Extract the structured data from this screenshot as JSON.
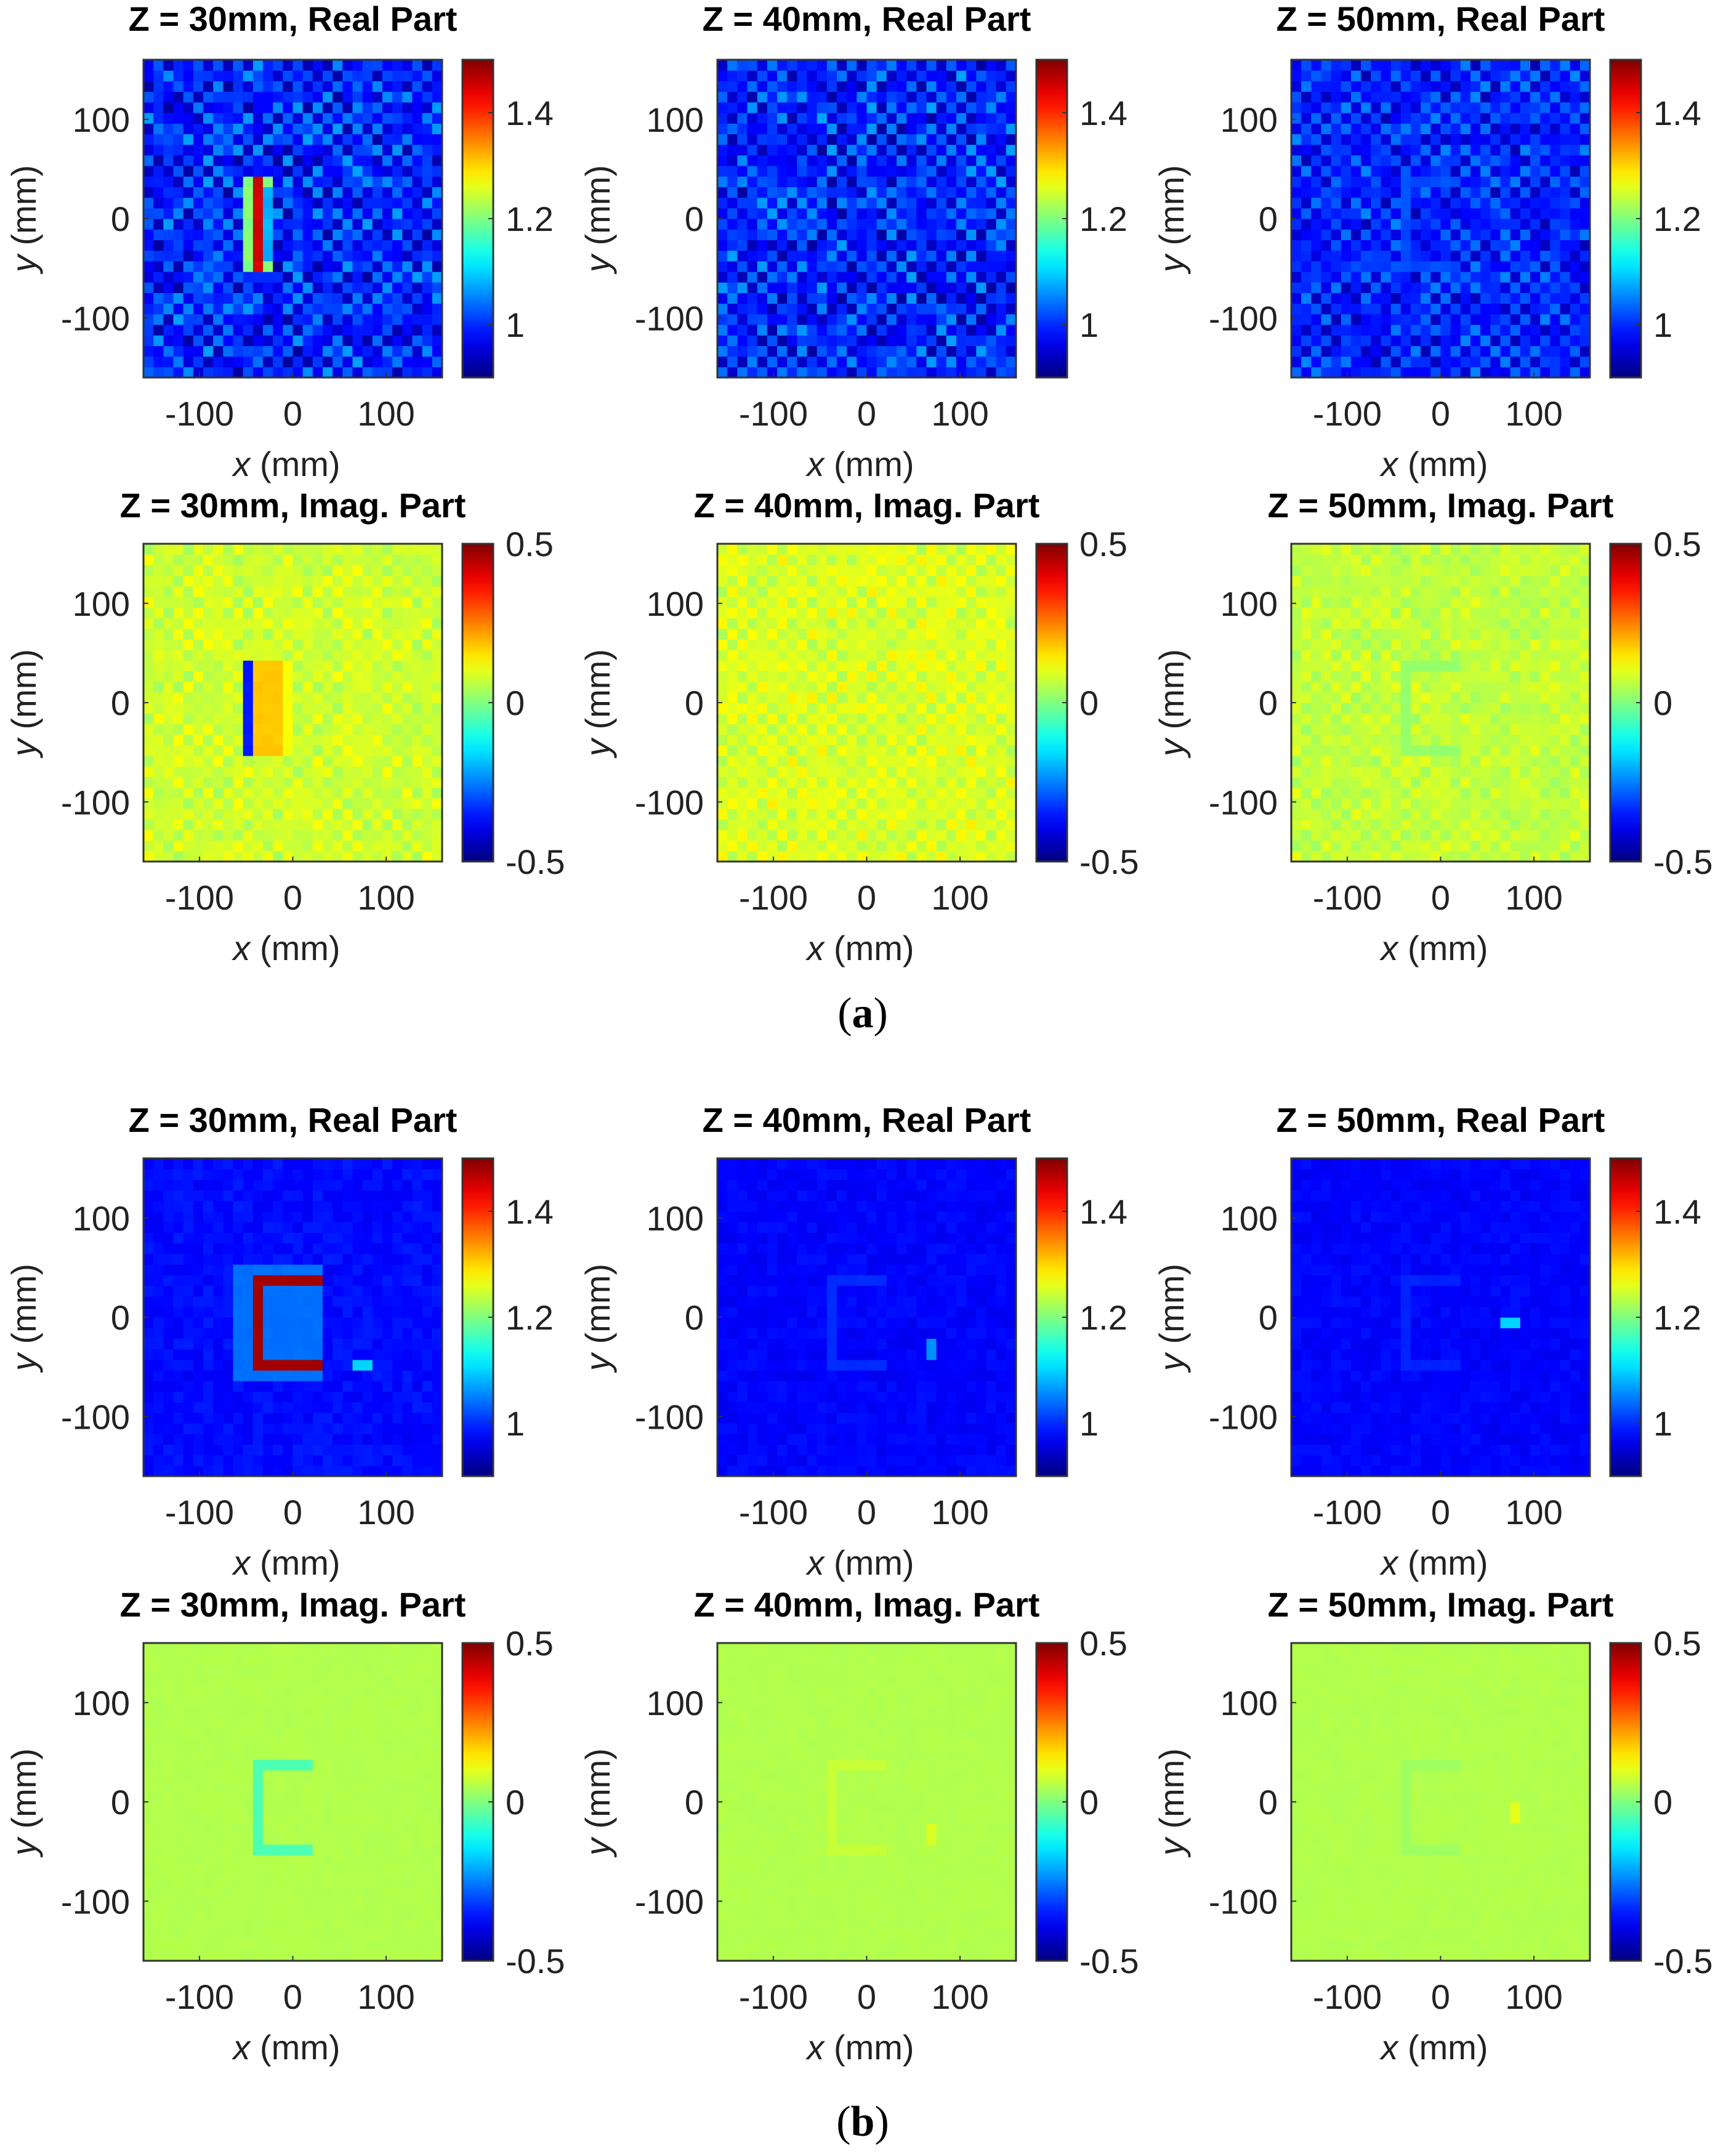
{
  "figure": {
    "panel_labels": [
      {
        "open": "(",
        "letter": "a",
        "close": ")"
      },
      {
        "open": "(",
        "letter": "b",
        "close": ")"
      }
    ]
  },
  "chart_data": [
    {
      "id": "a-r30",
      "type": "heatmap",
      "panel": "a",
      "title": "Z = 30mm, Real Part",
      "xlabel_var": "x",
      "xlabel_unit": " (mm)",
      "ylabel_var": "y",
      "ylabel_unit": " (mm)",
      "xlim": [
        -160,
        160
      ],
      "ylim": [
        -160,
        160
      ],
      "xticks": [
        -100,
        0,
        100
      ],
      "yticks": [
        -100,
        0,
        100
      ],
      "xtick_labels": [
        "-100",
        "0",
        "100"
      ],
      "ytick_labels": [
        "-100",
        "0",
        "100"
      ],
      "clim": [
        0.9,
        1.5
      ],
      "cticks": [
        1.0,
        1.2,
        1.4
      ],
      "ctick_labels": [
        "1",
        "1.2",
        "1.4"
      ],
      "grid_n": 30,
      "base": 0.98,
      "noise": 0.05,
      "checker": 0.04,
      "letter": "I",
      "letter_value": 1.45,
      "letter_value2": 1.2,
      "spot": null
    },
    {
      "id": "a-r40",
      "type": "heatmap",
      "panel": "a",
      "title": "Z = 40mm, Real Part",
      "xlabel_var": "x",
      "xlabel_unit": " (mm)",
      "ylabel_var": "y",
      "ylabel_unit": " (mm)",
      "xlim": [
        -160,
        160
      ],
      "ylim": [
        -160,
        160
      ],
      "xticks": [
        -100,
        0,
        100
      ],
      "yticks": [
        -100,
        0,
        100
      ],
      "xtick_labels": [
        "-100",
        "0",
        "100"
      ],
      "ytick_labels": [
        "-100",
        "0",
        "100"
      ],
      "clim": [
        0.9,
        1.5
      ],
      "cticks": [
        1.0,
        1.2,
        1.4
      ],
      "ctick_labels": [
        "1",
        "1.2",
        "1.4"
      ],
      "grid_n": 30,
      "base": 0.98,
      "noise": 0.05,
      "checker": 0.04,
      "letter": null,
      "letter_value": null,
      "letter_value2": null,
      "spot": null
    },
    {
      "id": "a-r50",
      "type": "heatmap",
      "panel": "a",
      "title": "Z = 50mm, Real Part",
      "xlabel_var": "x",
      "xlabel_unit": " (mm)",
      "ylabel_var": "y",
      "ylabel_unit": " (mm)",
      "xlim": [
        -160,
        160
      ],
      "ylim": [
        -160,
        160
      ],
      "xticks": [
        -100,
        0,
        100
      ],
      "yticks": [
        -100,
        0,
        100
      ],
      "xtick_labels": [
        "-100",
        "0",
        "100"
      ],
      "ytick_labels": [
        "-100",
        "0",
        "100"
      ],
      "clim": [
        0.9,
        1.5
      ],
      "cticks": [
        1.0,
        1.2,
        1.4
      ],
      "ctick_labels": [
        "1",
        "1.2",
        "1.4"
      ],
      "grid_n": 30,
      "base": 0.98,
      "noise": 0.04,
      "checker": 0.035,
      "letter": "faintE",
      "letter_value": 1.02,
      "letter_value2": 1.02,
      "spot": null
    },
    {
      "id": "a-i30",
      "type": "heatmap",
      "panel": "a",
      "title": "Z = 30mm, Imag. Part",
      "xlabel_var": "x",
      "xlabel_unit": " (mm)",
      "ylabel_var": "y",
      "ylabel_unit": " (mm)",
      "xlim": [
        -160,
        160
      ],
      "ylim": [
        -160,
        160
      ],
      "xticks": [
        -100,
        0,
        100
      ],
      "yticks": [
        -100,
        0,
        100
      ],
      "xtick_labels": [
        "-100",
        "0",
        "100"
      ],
      "ytick_labels": [
        "-100",
        "0",
        "100"
      ],
      "clim": [
        -0.5,
        0.5
      ],
      "cticks": [
        -0.5,
        0,
        0.5
      ],
      "ctick_labels": [
        "-0.5",
        "0",
        "0.5"
      ],
      "grid_n": 30,
      "base": 0.07,
      "noise": 0.03,
      "checker": 0.025,
      "letter": "Iimag",
      "letter_value": -0.35,
      "letter_value2": 0.18,
      "spot": null
    },
    {
      "id": "a-i40",
      "type": "heatmap",
      "panel": "a",
      "title": "Z = 40mm, Imag. Part",
      "xlabel_var": "x",
      "xlabel_unit": " (mm)",
      "ylabel_var": "y",
      "ylabel_unit": " (mm)",
      "xlim": [
        -160,
        160
      ],
      "ylim": [
        -160,
        160
      ],
      "xticks": [
        -100,
        0,
        100
      ],
      "yticks": [
        -100,
        0,
        100
      ],
      "xtick_labels": [
        "-100",
        "0",
        "100"
      ],
      "ytick_labels": [
        "-100",
        "0",
        "100"
      ],
      "clim": [
        -0.5,
        0.5
      ],
      "cticks": [
        -0.5,
        0,
        0.5
      ],
      "ctick_labels": [
        "-0.5",
        "0",
        "0.5"
      ],
      "grid_n": 30,
      "base": 0.08,
      "noise": 0.03,
      "checker": 0.03,
      "letter": null,
      "letter_value": null,
      "letter_value2": null,
      "spot": null
    },
    {
      "id": "a-i50",
      "type": "heatmap",
      "panel": "a",
      "title": "Z = 50mm, Imag. Part",
      "xlabel_var": "x",
      "xlabel_unit": " (mm)",
      "ylabel_var": "y",
      "ylabel_unit": " (mm)",
      "xlim": [
        -160,
        160
      ],
      "ylim": [
        -160,
        160
      ],
      "xticks": [
        -100,
        0,
        100
      ],
      "yticks": [
        -100,
        0,
        100
      ],
      "xtick_labels": [
        "-100",
        "0",
        "100"
      ],
      "ytick_labels": [
        "-100",
        "0",
        "100"
      ],
      "clim": [
        -0.5,
        0.5
      ],
      "cticks": [
        -0.5,
        0,
        0.5
      ],
      "ctick_labels": [
        "-0.5",
        "0",
        "0.5"
      ],
      "grid_n": 30,
      "base": 0.06,
      "noise": 0.025,
      "checker": 0.02,
      "letter": "faintEimag",
      "letter_value": 0.02,
      "letter_value2": 0.02,
      "spot": null
    },
    {
      "id": "b-r30",
      "type": "heatmap",
      "panel": "b",
      "title": "Z = 30mm, Real Part",
      "xlabel_var": "x",
      "xlabel_unit": " (mm)",
      "ylabel_var": "y",
      "ylabel_unit": " (mm)",
      "xlim": [
        -160,
        160
      ],
      "ylim": [
        -160,
        160
      ],
      "xticks": [
        -100,
        0,
        100
      ],
      "yticks": [
        -100,
        0,
        100
      ],
      "xtick_labels": [
        "-100",
        "0",
        "100"
      ],
      "ytick_labels": [
        "-100",
        "0",
        "100"
      ],
      "clim": [
        0.9,
        1.5
      ],
      "cticks": [
        1.0,
        1.2,
        1.4
      ],
      "ctick_labels": [
        "1",
        "1.2",
        "1.4"
      ],
      "grid_n": 30,
      "base": 0.98,
      "noise": 0.012,
      "checker": 0.0,
      "letter": "E",
      "letter_value": 1.48,
      "letter_value2": 1.04,
      "spot": [
        75,
        -48,
        1.1
      ]
    },
    {
      "id": "b-r40",
      "type": "heatmap",
      "panel": "b",
      "title": "Z = 40mm, Real Part",
      "xlabel_var": "x",
      "xlabel_unit": " (mm)",
      "ylabel_var": "y",
      "ylabel_unit": " (mm)",
      "xlim": [
        -160,
        160
      ],
      "ylim": [
        -160,
        160
      ],
      "xticks": [
        -100,
        0,
        100
      ],
      "yticks": [
        -100,
        0,
        100
      ],
      "xtick_labels": [
        "-100",
        "0",
        "100"
      ],
      "ytick_labels": [
        "-100",
        "0",
        "100"
      ],
      "clim": [
        0.9,
        1.5
      ],
      "cticks": [
        1.0,
        1.2,
        1.4
      ],
      "ctick_labels": [
        "1",
        "1.2",
        "1.4"
      ],
      "grid_n": 30,
      "base": 0.975,
      "noise": 0.01,
      "checker": 0.0,
      "letter": "faintE",
      "letter_value": 1.0,
      "letter_value2": 1.0,
      "spot": [
        68,
        -32,
        1.06
      ]
    },
    {
      "id": "b-r50",
      "type": "heatmap",
      "panel": "b",
      "title": "Z = 50mm, Real Part",
      "xlabel_var": "x",
      "xlabel_unit": " (mm)",
      "ylabel_var": "y",
      "ylabel_unit": " (mm)",
      "xlim": [
        -160,
        160
      ],
      "ylim": [
        -160,
        160
      ],
      "xticks": [
        -100,
        0,
        100
      ],
      "yticks": [
        -100,
        0,
        100
      ],
      "xtick_labels": [
        "-100",
        "0",
        "100"
      ],
      "ytick_labels": [
        "-100",
        "0",
        "100"
      ],
      "clim": [
        0.9,
        1.5
      ],
      "cticks": [
        1.0,
        1.2,
        1.4
      ],
      "ctick_labels": [
        "1",
        "1.2",
        "1.4"
      ],
      "grid_n": 30,
      "base": 0.975,
      "noise": 0.01,
      "checker": 0.0,
      "letter": "faintE",
      "letter_value": 0.995,
      "letter_value2": 0.995,
      "spot": [
        75,
        -8,
        1.1
      ]
    },
    {
      "id": "b-i30",
      "type": "heatmap",
      "panel": "b",
      "title": "Z = 30mm, Imag. Part",
      "xlabel_var": "x",
      "xlabel_unit": " (mm)",
      "ylabel_var": "y",
      "ylabel_unit": " (mm)",
      "xlim": [
        -160,
        160
      ],
      "ylim": [
        -160,
        160
      ],
      "xticks": [
        -100,
        0,
        100
      ],
      "yticks": [
        -100,
        0,
        100
      ],
      "xtick_labels": [
        "-100",
        "0",
        "100"
      ],
      "ytick_labels": [
        "-100",
        "0",
        "100"
      ],
      "clim": [
        -0.5,
        0.5
      ],
      "cticks": [
        -0.5,
        0,
        0.5
      ],
      "ctick_labels": [
        "-0.5",
        "0",
        "0.5"
      ],
      "grid_n": 30,
      "base": 0.05,
      "noise": 0.004,
      "checker": 0.0,
      "letter": "Ethin",
      "letter_value": -0.05,
      "letter_value2": 0.05,
      "spot": null
    },
    {
      "id": "b-i40",
      "type": "heatmap",
      "panel": "b",
      "title": "Z = 40mm, Imag. Part",
      "xlabel_var": "x",
      "xlabel_unit": " (mm)",
      "ylabel_var": "y",
      "ylabel_unit": " (mm)",
      "xlim": [
        -160,
        160
      ],
      "ylim": [
        -160,
        160
      ],
      "xticks": [
        -100,
        0,
        100
      ],
      "yticks": [
        -100,
        0,
        100
      ],
      "xtick_labels": [
        "-100",
        "0",
        "100"
      ],
      "ytick_labels": [
        "-100",
        "0",
        "100"
      ],
      "clim": [
        -0.5,
        0.5
      ],
      "cticks": [
        -0.5,
        0,
        0.5
      ],
      "ctick_labels": [
        "-0.5",
        "0",
        "0.5"
      ],
      "grid_n": 30,
      "base": 0.05,
      "noise": 0.004,
      "checker": 0.0,
      "letter": "faintEimagpos",
      "letter_value": 0.07,
      "letter_value2": 0.07,
      "spot": [
        70,
        -30,
        0.09
      ]
    },
    {
      "id": "b-i50",
      "type": "heatmap",
      "panel": "b",
      "title": "Z = 50mm, Imag. Part",
      "xlabel_var": "x",
      "xlabel_unit": " (mm)",
      "ylabel_var": "y",
      "ylabel_unit": " (mm)",
      "xlim": [
        -160,
        160
      ],
      "ylim": [
        -160,
        160
      ],
      "xticks": [
        -100,
        0,
        100
      ],
      "yticks": [
        -100,
        0,
        100
      ],
      "xtick_labels": [
        "-100",
        "0",
        "100"
      ],
      "ytick_labels": [
        "-100",
        "0",
        "100"
      ],
      "clim": [
        -0.5,
        0.5
      ],
      "cticks": [
        -0.5,
        0,
        0.5
      ],
      "ctick_labels": [
        "-0.5",
        "0",
        "0.5"
      ],
      "grid_n": 30,
      "base": 0.05,
      "noise": 0.004,
      "checker": 0.0,
      "letter": "faintEimag",
      "letter_value": 0.03,
      "letter_value2": 0.03,
      "spot": [
        78,
        -8,
        0.1
      ]
    }
  ]
}
